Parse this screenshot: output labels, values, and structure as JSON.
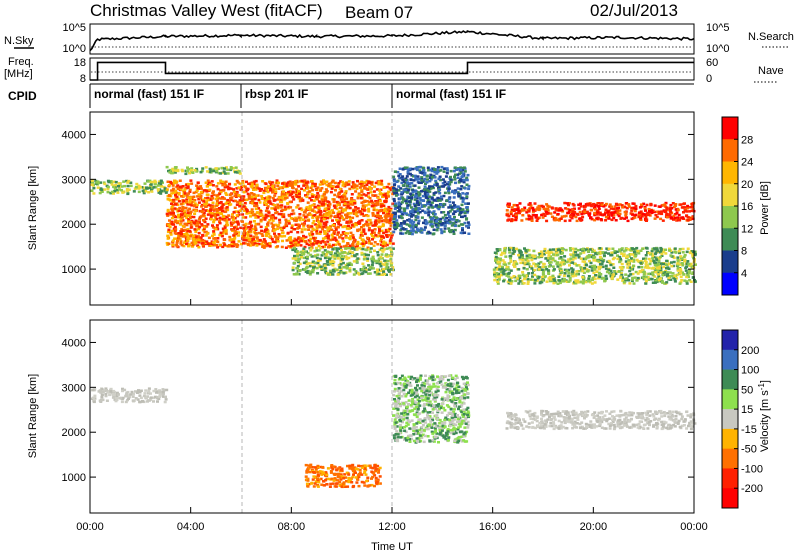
{
  "header": {
    "station": "Christmas Valley West (fitACF)",
    "beam": "Beam 07",
    "date": "02/Jul/2013"
  },
  "params": {
    "nsky_label": "N.Sky",
    "nsearch_label": "N.Search",
    "freq_label_1": "Freq.",
    "freq_label_2": "[MHz]",
    "nave_label": "Nave",
    "cpid_label": "CPID",
    "nsky_ticks": [
      "10^5",
      "10^0"
    ],
    "nsearch_ticks": [
      "10^5",
      "10^0"
    ],
    "freq_ticks": [
      "18",
      "8"
    ],
    "nave_ticks": [
      "60",
      "0"
    ]
  },
  "cpid_modes": [
    {
      "name": "normal (fast) 151 IF",
      "start_h": 0,
      "end_h": 6
    },
    {
      "name": "rbsp 201 IF",
      "start_h": 6,
      "end_h": 12
    },
    {
      "name": "normal (fast) 151 IF",
      "start_h": 12,
      "end_h": 24
    }
  ],
  "chart_data": [
    {
      "type": "line",
      "name": "N.Sky",
      "x_hours": [
        0,
        0.3,
        3,
        6,
        9,
        12,
        15,
        18,
        21,
        24
      ],
      "y_log10": [
        0.2,
        2.4,
        3.0,
        3.2,
        3.0,
        3.1,
        3.9,
        2.6,
        2.8,
        2.5
      ],
      "xlim": [
        0,
        24
      ]
    },
    {
      "type": "line",
      "name": "Freq.",
      "x_hours": [
        0,
        0.3,
        3,
        15,
        24
      ],
      "y_mhz": [
        8,
        16,
        11,
        16,
        16
      ],
      "ylim": [
        8,
        18
      ],
      "xlim": [
        0,
        24
      ]
    },
    {
      "type": "heatmap",
      "title": "",
      "ylabel": "Slant Range [km]",
      "xlabel": "",
      "colorbar_label": "Power [dB]",
      "colorbar_ticks": [
        "28",
        "24",
        "20",
        "16",
        "12",
        "8",
        "4"
      ],
      "colorbar_colors": [
        "#ff0000",
        "#ff6a00",
        "#ffb600",
        "#f0d83a",
        "#8ec84e",
        "#3e8b55",
        "#1a3d8c",
        "#0000ff"
      ],
      "yticks": [
        "4000",
        "3000",
        "2000",
        "1000"
      ],
      "ylim": [
        200,
        4500
      ],
      "xlim": [
        0,
        24
      ],
      "features": [
        {
          "t0": 0,
          "t1": 3,
          "r0": 2700,
          "r1": 3000,
          "level": 16
        },
        {
          "t0": 3,
          "t1": 6,
          "r0": 3150,
          "r1": 3300,
          "level": 16
        },
        {
          "t0": 3,
          "t1": 12,
          "r0": 1500,
          "r1": 3000,
          "level": 22
        },
        {
          "t0": 8,
          "t1": 12,
          "r0": 900,
          "r1": 1500,
          "level": 14
        },
        {
          "t0": 12,
          "t1": 15,
          "r0": 1800,
          "r1": 3300,
          "level": 10
        },
        {
          "t0": 16.5,
          "t1": 24,
          "r0": 2100,
          "r1": 2500,
          "level": 26
        },
        {
          "t0": 16,
          "t1": 24,
          "r0": 700,
          "r1": 1500,
          "level": 14
        }
      ]
    },
    {
      "type": "heatmap",
      "title": "",
      "ylabel": "Slant Range [km]",
      "xlabel": "Time UT",
      "colorbar_label": "Velocity [m s^-1]",
      "colorbar_ticks": [
        "200",
        "100",
        "50",
        "15",
        "-15",
        "-50",
        "-100",
        "-200"
      ],
      "colorbar_colors": [
        "#2222aa",
        "#3a6fbf",
        "#3e8b55",
        "#8ee04e",
        "#c8c8c0",
        "#ffb300",
        "#ff7000",
        "#ff2000",
        "#ff0000"
      ],
      "xticks": [
        "00:00",
        "04:00",
        "08:00",
        "12:00",
        "16:00",
        "20:00",
        "00:00"
      ],
      "yticks": [
        "4000",
        "3000",
        "2000",
        "1000"
      ],
      "ylim": [
        200,
        4500
      ],
      "xlim": [
        0,
        24
      ],
      "features": [
        {
          "t0": 0,
          "t1": 3,
          "r0": 2700,
          "r1": 3000,
          "velocity": 0
        },
        {
          "t0": 8.5,
          "t1": 11.5,
          "r0": 800,
          "r1": 1300,
          "velocity": -60
        },
        {
          "t0": 12,
          "t1": 15,
          "r0": 1800,
          "r1": 3300,
          "velocity": 40
        },
        {
          "t0": 16.5,
          "t1": 24,
          "r0": 2100,
          "r1": 2500,
          "velocity": 0
        }
      ]
    }
  ]
}
